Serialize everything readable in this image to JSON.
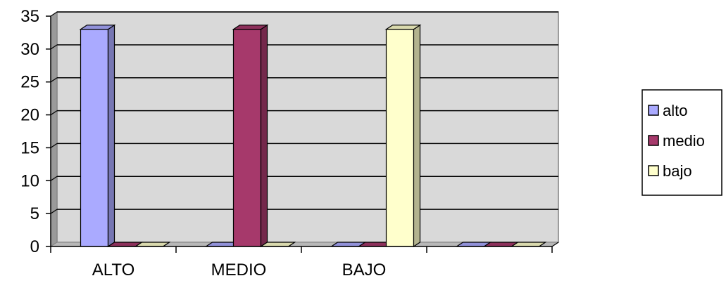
{
  "chart_data": {
    "type": "bar",
    "style": "3d-clustered-column",
    "title": "",
    "xlabel": "",
    "ylabel": "",
    "categories": [
      "ALTO",
      "MEDIO",
      "BAJO",
      ""
    ],
    "series": [
      {
        "name": "alto",
        "color": "#aaaaff",
        "values": [
          33,
          0,
          0,
          0
        ]
      },
      {
        "name": "medio",
        "color": "#a6396b",
        "values": [
          0,
          33,
          0,
          0
        ]
      },
      {
        "name": "bajo",
        "color": "#ffffcc",
        "values": [
          0,
          0,
          33,
          0
        ]
      }
    ],
    "ylim": [
      0,
      35
    ],
    "yticks": [
      "0",
      "5",
      "10",
      "15",
      "20",
      "25",
      "30",
      "35"
    ],
    "grid": true,
    "plot_background": "#d9d9d9",
    "legend_position": "right"
  }
}
